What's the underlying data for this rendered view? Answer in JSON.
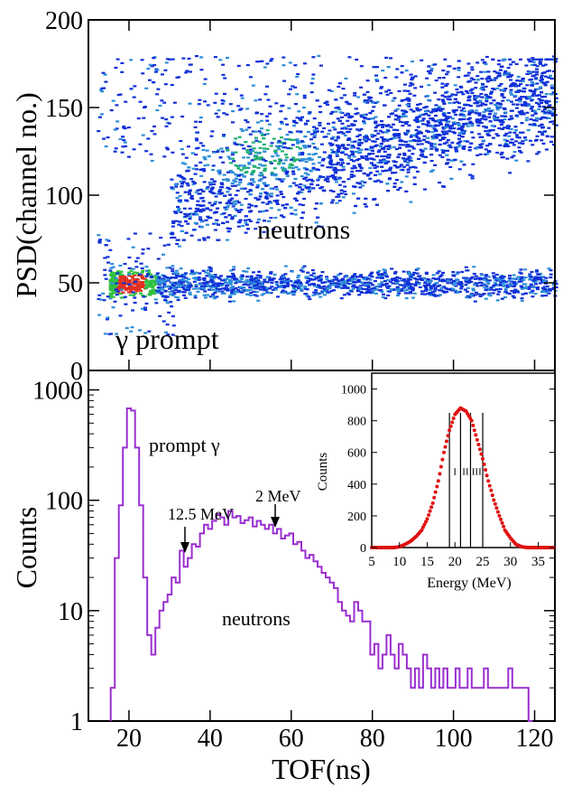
{
  "chart_data": [
    {
      "type": "heatmap",
      "ylabel": "PSD(channel no.)",
      "xlim": [
        10,
        125
      ],
      "ylim": [
        0,
        200
      ],
      "yticks": [
        0,
        50,
        100,
        150,
        200
      ],
      "labels": {
        "neutrons": "neutrons",
        "gamma": "γ prompt"
      },
      "regions": [
        {
          "name": "gamma band",
          "x": [
            15,
            125
          ],
          "y_center": 50,
          "y_halfwidth": 6
        },
        {
          "name": "prompt gamma peak",
          "x_center": 20,
          "y_center": 50,
          "color": "#e02020"
        },
        {
          "name": "neutron band",
          "x": [
            30,
            125
          ],
          "y": [
            80,
            175
          ],
          "dense_center": [
            50,
            125
          ]
        }
      ],
      "colors": [
        "#1030d8",
        "#2f8fd8",
        "#20b070",
        "#30c040",
        "#e03020"
      ]
    },
    {
      "type": "line",
      "xlabel": "TOF(ns)",
      "ylabel": "Counts",
      "xlim": [
        10,
        125
      ],
      "ylim": [
        1,
        1500
      ],
      "yscale": "log",
      "xticks": [
        20,
        40,
        60,
        80,
        100,
        120
      ],
      "yticks": [
        1,
        10,
        100,
        1000
      ],
      "line_color": "#9a2fd0",
      "x": [
        16,
        17,
        18,
        19,
        20,
        21,
        22,
        23,
        24,
        25,
        26,
        27,
        28,
        29,
        30,
        31,
        32,
        33,
        34,
        35,
        36,
        37,
        38,
        39,
        40,
        41,
        42,
        43,
        44,
        45,
        46,
        47,
        48,
        49,
        50,
        51,
        52,
        53,
        54,
        55,
        56,
        57,
        58,
        59,
        60,
        61,
        62,
        63,
        64,
        65,
        66,
        67,
        68,
        69,
        70,
        71,
        72,
        73,
        74,
        75,
        76,
        77,
        78,
        79,
        80,
        81,
        82,
        83,
        84,
        85,
        86,
        87,
        88,
        89,
        90,
        91,
        92,
        93,
        94,
        95,
        96,
        97,
        98,
        99,
        100,
        101,
        102,
        103,
        104,
        105,
        106,
        107,
        108,
        109,
        110,
        111,
        112,
        113,
        114,
        115,
        116,
        117,
        118,
        119
      ],
      "y": [
        2,
        30,
        90,
        300,
        680,
        650,
        300,
        90,
        20,
        6,
        4,
        7,
        10,
        12,
        14,
        20,
        18,
        35,
        25,
        30,
        40,
        38,
        50,
        60,
        55,
        65,
        75,
        70,
        60,
        80,
        70,
        72,
        62,
        66,
        70,
        58,
        65,
        60,
        55,
        60,
        50,
        55,
        45,
        48,
        50,
        40,
        42,
        35,
        30,
        32,
        28,
        25,
        22,
        20,
        18,
        16,
        12,
        10,
        9,
        8,
        12,
        10,
        8,
        8,
        4,
        5,
        3,
        4,
        6,
        4,
        3,
        5,
        4,
        3,
        2,
        3,
        2,
        4,
        3,
        2,
        3,
        2,
        3,
        2,
        2,
        3,
        2,
        2,
        3,
        2,
        2,
        2,
        3,
        2,
        2,
        2,
        2,
        2,
        3,
        2,
        2,
        2,
        2,
        1
      ],
      "annotations": [
        {
          "text": "prompt γ",
          "x": 25,
          "y": 600
        },
        {
          "text": "12.5 MeV",
          "x": 32.5,
          "y": 35,
          "arrow": true
        },
        {
          "text": "2 MeV",
          "x": 55,
          "y": 75,
          "arrow": true
        },
        {
          "text": "neutrons",
          "x": 55,
          "y": 12
        }
      ]
    },
    {
      "type": "scatter",
      "xlabel": "Energy (MeV)",
      "ylabel": "Counts",
      "xlim": [
        5,
        38
      ],
      "ylim": [
        0,
        1100
      ],
      "xticks": [
        5,
        10,
        15,
        20,
        25,
        30,
        35
      ],
      "yticks": [
        0,
        200,
        400,
        600,
        800,
        1000
      ],
      "point_color": "#e01010",
      "x": [
        5,
        6,
        7,
        8,
        9,
        10,
        11,
        12,
        13,
        14,
        15,
        16,
        17,
        18,
        19,
        20,
        21,
        22,
        23,
        24,
        25,
        26,
        27,
        28,
        29,
        30,
        31,
        32,
        33,
        34,
        35,
        36,
        37,
        38
      ],
      "y": [
        0,
        0,
        0,
        0,
        0,
        5,
        20,
        40,
        70,
        110,
        180,
        280,
        420,
        600,
        740,
        840,
        880,
        860,
        800,
        680,
        560,
        420,
        300,
        200,
        110,
        60,
        20,
        5,
        0,
        0,
        0,
        0,
        0,
        0
      ],
      "bins": {
        "edges": [
          19,
          21,
          22.8,
          25
        ],
        "labels": [
          "I",
          "II",
          "III"
        ],
        "line_top": 850
      }
    }
  ]
}
